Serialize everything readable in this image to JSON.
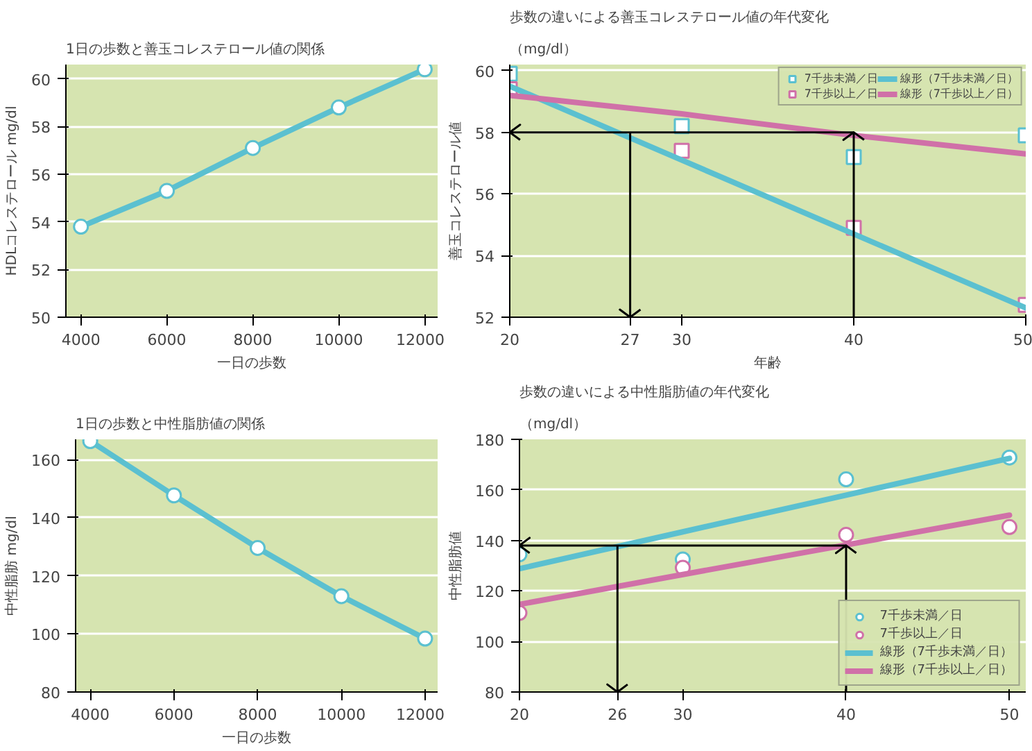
{
  "chart_data": [
    {
      "type": "line",
      "title": "1日の歩数と善玉コレステロール値の関係",
      "xlabel": "一日の歩数",
      "ylabel": "HDLコレステロール mg/dl",
      "marker": "circle",
      "grid": "y",
      "legend": false,
      "x": [
        4000,
        6000,
        8000,
        10000,
        12000
      ],
      "xlim": [
        3650,
        12300
      ],
      "ylim": [
        50,
        60.6
      ],
      "xticks": [
        4000,
        6000,
        8000,
        10000,
        12000
      ],
      "yticks": [
        50,
        52,
        54,
        56,
        58,
        60
      ],
      "series": [
        {
          "color": "#5bc0d0",
          "values": [
            53.8,
            55.3,
            57.1,
            58.8,
            60.4
          ]
        }
      ]
    },
    {
      "type": "scatter",
      "title": "歩数の違いによる善玉コレステロール値の年代変化",
      "xlabel": "年齢",
      "ylabel": "善玉コレステロール値",
      "annotations": [
        "（mg/dl）"
      ],
      "marker": "square",
      "grid": "y",
      "legend": "top right",
      "x": [
        20,
        30,
        40,
        50
      ],
      "xlim": [
        20,
        50
      ],
      "ylim": [
        52,
        60.2
      ],
      "xticks": [
        20,
        27,
        30,
        40,
        50
      ],
      "yticks": [
        52,
        54,
        56,
        58,
        60
      ],
      "ref_lines": [
        {
          "axis": "x",
          "value": 27,
          "color": "#000000"
        },
        {
          "axis": "x",
          "value": 40,
          "color": "#000000"
        },
        {
          "axis": "y",
          "value": 58,
          "color": "#000000"
        }
      ],
      "series": [
        {
          "name": "7千歩未満／日",
          "color": "#5bc0d0",
          "values": [
            59.9,
            58.2,
            57.2,
            57.9
          ]
        },
        {
          "name": "7千歩以上／日",
          "color": "#d070a8",
          "values": [
            59.4,
            57.4,
            54.9,
            52.4
          ]
        },
        {
          "name": "線形（7千歩未満／日）",
          "type": "line",
          "marker": "none",
          "color": "#5bc0d0",
          "values": [
            59.5,
            57.1,
            54.7,
            52.3
          ]
        },
        {
          "name": "線形（7千歩以上／日）",
          "type": "line",
          "marker": "none",
          "color": "#d070a8",
          "values": [
            59.2,
            58.6,
            57.9,
            57.3
          ]
        }
      ]
    },
    {
      "type": "line",
      "title": "1日の歩数と中性脂肪値の関係",
      "xlabel": "一日の歩数",
      "ylabel": "中性脂肪 mg/dl",
      "marker": "circle",
      "grid": "y",
      "legend": false,
      "x": [
        4000,
        6000,
        8000,
        10000,
        12000
      ],
      "xlim": [
        3650,
        12300
      ],
      "ylim": [
        80,
        167
      ],
      "xticks": [
        4000,
        6000,
        8000,
        10000,
        12000
      ],
      "yticks": [
        80,
        100,
        120,
        140,
        160
      ],
      "series": [
        {
          "color": "#5bc0d0",
          "values": [
            166.4,
            147.7,
            129.6,
            113.0,
            98.4
          ]
        }
      ]
    },
    {
      "type": "scatter",
      "title": "歩数の違いによる中性脂肪値の年代変化",
      "ylabel": "中性脂肪値",
      "annotations": [
        "（mg/dl）"
      ],
      "marker": "circle",
      "grid": "y",
      "legend": "bottom right",
      "x": [
        20,
        30,
        40,
        50
      ],
      "xlim": [
        20,
        51
      ],
      "ylim": [
        80,
        180
      ],
      "xticks": [
        20,
        26,
        30,
        40,
        50
      ],
      "yticks": [
        80,
        100,
        120,
        140,
        160,
        180
      ],
      "ref_lines": [
        {
          "axis": "x",
          "value": 26,
          "color": "#000000"
        },
        {
          "axis": "x",
          "value": 40,
          "color": "#000000"
        },
        {
          "axis": "y",
          "value": 138,
          "color": "#000000"
        }
      ],
      "series": [
        {
          "name": "7千歩未満／日",
          "color": "#5bc0d0",
          "values": [
            134.5,
            132.5,
            164.2,
            172.8
          ]
        },
        {
          "name": "7千歩以上／日",
          "color": "#d070a8",
          "values": [
            111.3,
            129.2,
            142.2,
            145.3
          ]
        },
        {
          "name": "線形（7千歩未満／日）",
          "type": "line",
          "marker": "none",
          "color": "#5bc0d0",
          "values": [
            128.8,
            143.4,
            157.9,
            172.5
          ]
        },
        {
          "name": "線形（7千歩以上／日）",
          "type": "line",
          "marker": "none",
          "color": "#d070a8",
          "values": [
            114.7,
            126.5,
            138.2,
            150.0
          ]
        }
      ]
    }
  ]
}
